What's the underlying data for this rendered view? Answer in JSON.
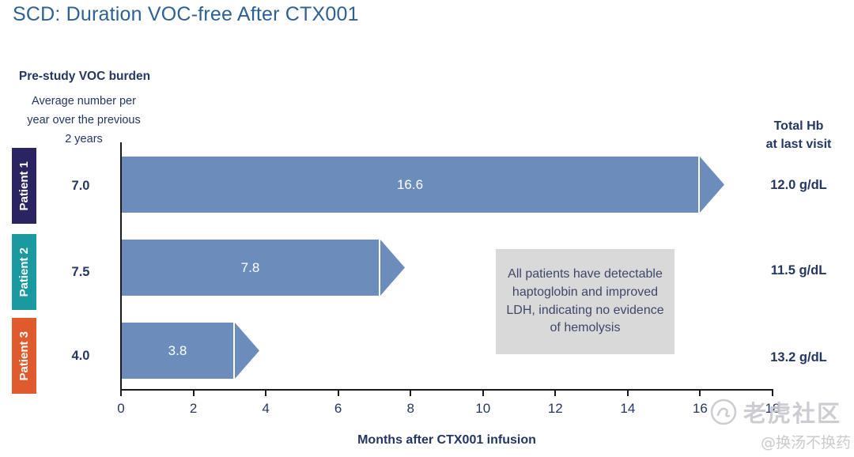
{
  "title": "SCD: Duration VOC-free After CTX001",
  "left_panel": {
    "heading": "Pre-study VOC burden",
    "sub_lines": [
      "Average number per",
      "year over the previous",
      "2 years"
    ]
  },
  "right_panel": {
    "heading_line1": "Total Hb",
    "heading_line2": "at last visit"
  },
  "callout": {
    "text": "All patients have detectable haptoglobin and improved LDH, indicating no evidence of hemolysis",
    "bg_color": "#d9d9d9"
  },
  "watermark": {
    "logo": "tiger-community-logo",
    "community": "老虎社区",
    "handle": "@换汤不换药"
  },
  "colors": {
    "title": "#2e6096",
    "dark_navy_text": "#243763",
    "bar": "#6c8cbb",
    "patient1_box": "#2a2562",
    "patient2_box": "#1b99a0",
    "patient3_box": "#df5a2c"
  },
  "chart_data": {
    "type": "bar",
    "orientation": "horizontal",
    "title": "SCD: Duration VOC-free After CTX001",
    "xlabel": "Months after CTX001 infusion",
    "xlim": [
      0,
      18
    ],
    "xticks": [
      0,
      2,
      4,
      6,
      8,
      10,
      12,
      14,
      16,
      18
    ],
    "grid": false,
    "legend": false,
    "bar_color": "#6c8cbb",
    "patients": [
      {
        "label": "Patient 1",
        "label_color": "#2a2562",
        "pre_study_voc": "7.0",
        "months_voc_free": 16.6,
        "total_hb": "12.0 g/dL"
      },
      {
        "label": "Patient 2",
        "label_color": "#1b99a0",
        "pre_study_voc": "7.5",
        "months_voc_free": 7.8,
        "total_hb": "11.5 g/dL"
      },
      {
        "label": "Patient 3",
        "label_color": "#df5a2c",
        "pre_study_voc": "4.0",
        "months_voc_free": 3.8,
        "total_hb": "13.2 g/dL"
      }
    ]
  }
}
